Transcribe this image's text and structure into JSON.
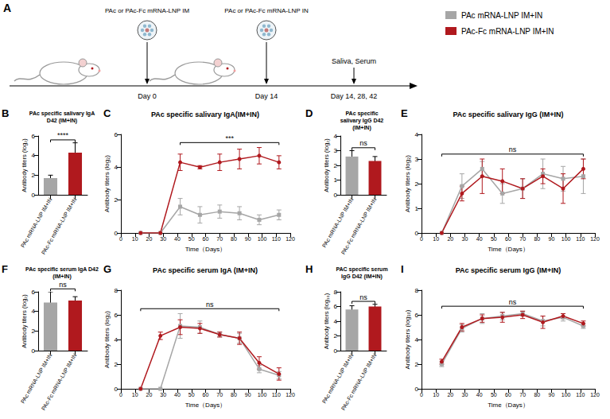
{
  "diagram": {
    "panel": "A",
    "steps": [
      {
        "text": "PAc or PAc-Fc mRNA-LNP IM",
        "day": "Day 0"
      },
      {
        "text": "PAc or PAc-Fc mRNA-LNP IN",
        "day": "Day 14"
      }
    ],
    "sampling": {
      "text": "Saliva, Serum",
      "days": "Day 14, 28, 42"
    }
  },
  "chart_data": [
    {
      "type": "bar",
      "panel": "B",
      "title": "PAc specific salivary IgA D42 (IM+IN)",
      "ylabel": "Antibody titers (log₂)",
      "categories": [
        "PAc mRNA-LNP IM+IN",
        "PAc-Fc mRNA-LNP IM+IN"
      ],
      "values": [
        1.7,
        4.3
      ],
      "errors": [
        0.3,
        1.0
      ],
      "colors": [
        "#a6a6a6",
        "#b0191e"
      ],
      "ylim": [
        0,
        6
      ],
      "yticks": [
        0,
        2,
        4,
        6
      ],
      "grid": false,
      "significance": "****"
    },
    {
      "type": "line",
      "panel": "C",
      "title": "PAc specific salivary IgA(IM+IN)",
      "xlabel": "Time（Days）",
      "ylabel": "Antibody titers (log₂)",
      "x": [
        14,
        28,
        42,
        56,
        70,
        84,
        98,
        112
      ],
      "xlim": [
        0,
        120
      ],
      "xticks": [
        0,
        10,
        20,
        30,
        40,
        50,
        60,
        70,
        80,
        90,
        100,
        110,
        120
      ],
      "ylim": [
        0,
        6
      ],
      "yticks": [
        0,
        2,
        4,
        6
      ],
      "grid": false,
      "series": [
        {
          "name": "PAc mRNA-LNP IM+IN",
          "color": "#a6a6a6",
          "marker": "square",
          "values": [
            0,
            0,
            1.6,
            1.1,
            1.3,
            1.2,
            0.8,
            1.1
          ],
          "errors": [
            0,
            0,
            0.5,
            0.5,
            0.4,
            0.4,
            0.3,
            0.3
          ]
        },
        {
          "name": "PAc-Fc mRNA-LNP IM+IN",
          "color": "#b0191e",
          "marker": "circle",
          "values": [
            0,
            0,
            4.3,
            4.0,
            4.3,
            4.5,
            4.7,
            4.3
          ],
          "errors": [
            0,
            0,
            0.5,
            0.1,
            0.5,
            0.6,
            0.5,
            0.4
          ]
        }
      ],
      "significance": {
        "text": "***",
        "from": 42,
        "to": 112
      }
    },
    {
      "type": "bar",
      "panel": "D",
      "title": "PAc specific salivary IgG D42 (IM+IN)",
      "ylabel": "Antibody titers (log₂)",
      "categories": [
        "PAc mRNA-LNP IM+IN",
        "PAc-Fc mRNA-LNP IM+IN"
      ],
      "values": [
        2.6,
        2.3
      ],
      "errors": [
        0.4,
        0.3
      ],
      "colors": [
        "#a6a6a6",
        "#b0191e"
      ],
      "ylim": [
        0,
        4
      ],
      "yticks": [
        0,
        1,
        2,
        3,
        4
      ],
      "grid": false,
      "significance": "ns"
    },
    {
      "type": "line",
      "panel": "E",
      "title": "PAc specific salivary IgG (IM+IN)",
      "xlabel": "Time（Days）",
      "ylabel": "Antibody titers (log₂)",
      "x": [
        14,
        28,
        42,
        56,
        70,
        84,
        98,
        112
      ],
      "xlim": [
        0,
        120
      ],
      "xticks": [
        0,
        10,
        20,
        30,
        40,
        50,
        60,
        70,
        80,
        90,
        100,
        110,
        120
      ],
      "ylim": [
        0,
        4
      ],
      "yticks": [
        0,
        1,
        2,
        3,
        4
      ],
      "grid": false,
      "series": [
        {
          "name": "PAc mRNA-LNP IM+IN",
          "color": "#a6a6a6",
          "marker": "square",
          "values": [
            0,
            1.9,
            2.6,
            1.6,
            1.8,
            2.4,
            2.2,
            2.3
          ],
          "errors": [
            0,
            0.5,
            0.3,
            0.4,
            0.4,
            0.6,
            0.5,
            0.7
          ]
        },
        {
          "name": "PAc-Fc mRNA-LNP IM+IN",
          "color": "#b0191e",
          "marker": "circle",
          "values": [
            0,
            1.6,
            2.3,
            2.1,
            1.8,
            2.3,
            1.8,
            2.6
          ],
          "errors": [
            0,
            0.3,
            0.7,
            0.5,
            0.4,
            0.3,
            0.6,
            0.4
          ]
        }
      ],
      "significance": {
        "text": "ns",
        "from": 14,
        "to": 112
      }
    },
    {
      "type": "bar",
      "panel": "F",
      "title": "PAc specific serum IgA D42 (IM+IN)",
      "ylabel": "Antibody titers (log₂)",
      "categories": [
        "PAc mRNA-LNP IM+IN",
        "PAc-Fc mRNA-LNP IM+IN"
      ],
      "values": [
        4.9,
        5.1
      ],
      "errors": [
        1.1,
        0.4
      ],
      "colors": [
        "#a6a6a6",
        "#b0191e"
      ],
      "ylim": [
        0,
        6
      ],
      "yticks": [
        0,
        2,
        4,
        6
      ],
      "grid": false,
      "significance": "ns"
    },
    {
      "type": "line",
      "panel": "G",
      "title": "PAc specific serum IgA (IM+IN)",
      "xlabel": "Time（Days）",
      "ylabel": "Antibody titers (log₂)",
      "x": [
        14,
        28,
        42,
        56,
        70,
        84,
        98,
        112
      ],
      "xlim": [
        0,
        120
      ],
      "xticks": [
        0,
        10,
        20,
        30,
        40,
        50,
        60,
        70,
        80,
        90,
        100,
        110,
        120
      ],
      "ylim": [
        0,
        8
      ],
      "yticks": [
        0,
        2,
        4,
        6,
        8
      ],
      "grid": false,
      "series": [
        {
          "name": "PAc mRNA-LNP IM+IN",
          "color": "#a6a6a6",
          "marker": "square",
          "values": [
            0,
            0,
            5.1,
            5.0,
            4.4,
            4.1,
            1.6,
            1.1
          ],
          "errors": [
            0,
            0,
            1.0,
            0.5,
            0.2,
            0.4,
            0.3,
            0.3
          ]
        },
        {
          "name": "PAc-Fc mRNA-LNP IM+IN",
          "color": "#b0191e",
          "marker": "circle",
          "values": [
            0,
            4.3,
            5.0,
            4.9,
            4.4,
            4.1,
            2.1,
            1.2
          ],
          "errors": [
            0,
            0.3,
            0.6,
            0.4,
            0.2,
            0.5,
            0.5,
            0.5
          ]
        }
      ],
      "significance": {
        "text": "ns",
        "from": 14,
        "to": 112
      }
    },
    {
      "type": "bar",
      "panel": "H",
      "title": "PAC specific serum IgG D42 (IM+IN)",
      "ylabel": "Antibody titers (log₁₀)",
      "categories": [
        "PAc mRNA-LNP IM+IN",
        "PAc-Fc mRNA-LNP IM+IN"
      ],
      "values": [
        5.6,
        6.0
      ],
      "errors": [
        0.5,
        0.3
      ],
      "colors": [
        "#a6a6a6",
        "#b0191e"
      ],
      "ylim": [
        0,
        8
      ],
      "yticks": [
        0,
        2,
        4,
        6,
        8
      ],
      "grid": false,
      "significance": "ns"
    },
    {
      "type": "line",
      "panel": "I",
      "title": "PAc specific serum IgG (IM+IN)",
      "xlabel": "Time（Days）",
      "ylabel": "Antibody titers (log₁₀)",
      "x": [
        14,
        28,
        42,
        56,
        70,
        84,
        98,
        112
      ],
      "xlim": [
        0,
        120
      ],
      "xticks": [
        0,
        10,
        20,
        30,
        40,
        50,
        60,
        70,
        80,
        90,
        100,
        110,
        120
      ],
      "ylim": [
        0,
        8
      ],
      "yticks": [
        0,
        2,
        4,
        6,
        8
      ],
      "grid": false,
      "series": [
        {
          "name": "PAc mRNA-LNP IM+IN",
          "color": "#a6a6a6",
          "marker": "square",
          "values": [
            2.0,
            4.9,
            5.7,
            5.9,
            6.1,
            5.5,
            5.8,
            5.1
          ],
          "errors": [
            0.2,
            0.3,
            0.4,
            0.3,
            0.2,
            0.4,
            0.3,
            0.2
          ]
        },
        {
          "name": "PAc-Fc mRNA-LNP IM+IN",
          "color": "#b0191e",
          "marker": "circle",
          "values": [
            2.2,
            5.0,
            5.7,
            5.8,
            6.0,
            5.4,
            5.9,
            5.3
          ],
          "errors": [
            0.2,
            0.3,
            0.3,
            0.4,
            0.3,
            0.5,
            0.2,
            0.2
          ]
        }
      ],
      "significance": {
        "text": "ns",
        "from": 14,
        "to": 112
      }
    }
  ]
}
